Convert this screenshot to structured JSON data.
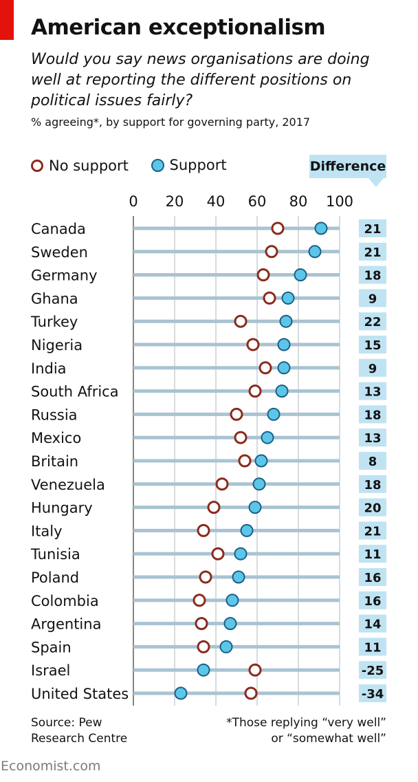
{
  "title": "American exceptionalism",
  "subtitle": "Would you say news organisations are doing well at reporting the different positions on political issues fairly?",
  "subnote": "% agreeing*, by support for governing party, 2017",
  "legend": {
    "no_support": "No support",
    "support": "Support"
  },
  "difference_header": "Difference",
  "source_line1": "Source: Pew",
  "source_line2": "Research Centre",
  "footnote_line1": "*Those replying “very well”",
  "footnote_line2": "or “somewhat well”",
  "brand": "Economist.com",
  "colors": {
    "no_support_stroke": "#8b2a1c",
    "support_fill": "#5cc6e8",
    "support_stroke": "#1a5f86",
    "bar": "#a9c3d2",
    "difference_bg": "#bfe3f2",
    "accent": "#e3120b"
  },
  "chart_data": {
    "type": "dot",
    "title": "American exceptionalism",
    "xlim": [
      0,
      100
    ],
    "xticks": [
      "0",
      "20",
      "40",
      "60",
      "80",
      "100"
    ],
    "xtick_values": [
      0,
      20,
      40,
      60,
      80,
      100
    ],
    "categories": [
      "Canada",
      "Sweden",
      "Germany",
      "Ghana",
      "Turkey",
      "Nigeria",
      "India",
      "South Africa",
      "Russia",
      "Mexico",
      "Britain",
      "Venezuela",
      "Hungary",
      "Italy",
      "Tunisia",
      "Poland",
      "Colombia",
      "Argentina",
      "Spain",
      "Israel",
      "United States"
    ],
    "series": [
      {
        "name": "No support",
        "values": [
          70,
          67,
          63,
          66,
          52,
          58,
          64,
          59,
          50,
          52,
          54,
          43,
          39,
          34,
          41,
          35,
          32,
          33,
          34,
          59,
          57
        ]
      },
      {
        "name": "Support",
        "values": [
          91,
          88,
          81,
          75,
          74,
          73,
          73,
          72,
          68,
          65,
          62,
          61,
          59,
          55,
          52,
          51,
          48,
          47,
          45,
          34,
          23
        ]
      }
    ],
    "difference": [
      "21",
      "21",
      "18",
      "9",
      "22",
      "15",
      "9",
      "13",
      "18",
      "13",
      "8",
      "18",
      "20",
      "21",
      "11",
      "16",
      "16",
      "14",
      "11",
      "-25",
      "-34"
    ]
  }
}
